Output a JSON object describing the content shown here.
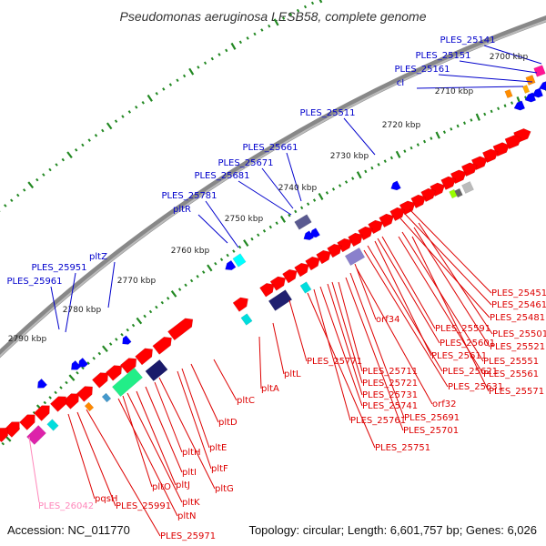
{
  "title": "Pseudomonas aeruginosa LESB58, complete genome",
  "footer": {
    "accession": "Accession: NC_011770",
    "summary": "Topology: circular; Length: 6,601,757 bp; Genes: 6,026"
  },
  "colors": {
    "forward_strand": "#ff0000",
    "reverse_strand": "#0000ff",
    "label_upper": "#0000cc",
    "label_lower": "#dd0000",
    "label_pink": "#ff88bb",
    "ruler_ticks": "#228822",
    "backbone": "#888888"
  },
  "scale_labels": [
    "2700 kbp",
    "2710 kbp",
    "2720 kbp",
    "2730 kbp",
    "2740 kbp",
    "2750 kbp",
    "2760 kbp",
    "2770 kbp",
    "2780 kbp",
    "2790 kbp"
  ],
  "upper_labels": [
    "PLES_25141",
    "PLES_25151",
    "PLES_25161",
    "cI",
    "PLES_25511",
    "PLES_25661",
    "PLES_25671",
    "PLES_25681",
    "PLES_25781",
    "pltR",
    "pltZ",
    "PLES_25951",
    "PLES_25961"
  ],
  "lower_labels": [
    "PLES_25451",
    "PLES_25461",
    "PLES_25481",
    "PLES_25501",
    "PLES_25521",
    "PLES_25551",
    "PLES_25561",
    "PLES_25571",
    "PLES_25591",
    "PLES_25601",
    "PLES_25611",
    "PLES_25621",
    "PLES_25631",
    "orf34",
    "orf32",
    "PLES_25691",
    "PLES_25701",
    "PLES_25711",
    "PLES_25721",
    "PLES_25731",
    "PLES_25741",
    "PLES_25761",
    "PLES_25751",
    "PLES_25771",
    "pltL",
    "pltA",
    "pltC",
    "pltD",
    "pltE",
    "pltF",
    "pltG",
    "pltH",
    "pltI",
    "pltJ",
    "pltK",
    "pltO",
    "pltN",
    "PLES_25971",
    "PLES_25991",
    "pqsH"
  ],
  "pink_labels": [
    "PLES_26042"
  ]
}
